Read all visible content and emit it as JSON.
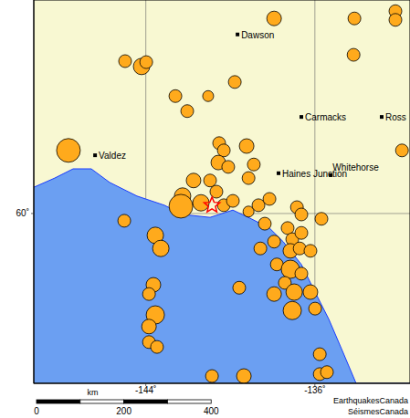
{
  "chart_data": {
    "type": "scatter",
    "xlim": [
      -149.3,
      -131.5
    ],
    "ylim": [
      56.5,
      64.4
    ],
    "xticks": [
      {
        "value": -144,
        "label": "-144˚"
      },
      {
        "value": -136,
        "label": "-136˚"
      }
    ],
    "yticks": [
      {
        "value": 60,
        "label": "60˚"
      }
    ],
    "grid": true,
    "color": "#ffaa1c",
    "coastline": {
      "x": [
        -149.3,
        -148.31,
        -147.44,
        -146.58,
        -145.71,
        -144.42,
        -143.12,
        -142.26,
        -140.96,
        -139.88,
        -139.01,
        -138.15,
        -137.5,
        -136.64,
        -135.99,
        -135.34,
        -134.69,
        -134.05,
        -131.5
      ],
      "y": [
        60.54,
        60.73,
        60.92,
        60.92,
        60.64,
        60.36,
        60.17,
        59.98,
        59.92,
        60.07,
        59.89,
        59.7,
        59.42,
        58.95,
        58.38,
        57.82,
        57.16,
        56.5,
        56.5
      ]
    },
    "quakes": [
      {
        "x": -137.93,
        "y": 64.02,
        "magnitude": 3
      },
      {
        "x": -134.13,
        "y": 64.02,
        "magnitude": 2.5
      },
      {
        "x": -132.19,
        "y": 64.17,
        "magnitude": 2.5
      },
      {
        "x": -132.19,
        "y": 63.99,
        "magnitude": 2.5
      },
      {
        "x": -134.17,
        "y": 63.27,
        "magnitude": 2.5
      },
      {
        "x": -144.98,
        "y": 63.14,
        "magnitude": 2.5
      },
      {
        "x": -144.2,
        "y": 63.03,
        "magnitude": 3.5
      },
      {
        "x": -143.98,
        "y": 63.12,
        "magnitude": 2.5
      },
      {
        "x": -142.6,
        "y": 62.42,
        "magnitude": 2.5
      },
      {
        "x": -142.04,
        "y": 62.11,
        "magnitude": 2.5
      },
      {
        "x": -141.05,
        "y": 62.42,
        "magnitude": 2
      },
      {
        "x": -139.79,
        "y": 62.71,
        "magnitude": 2.5
      },
      {
        "x": -131.88,
        "y": 61.3,
        "magnitude": 2.5
      },
      {
        "x": -147.66,
        "y": 61.3,
        "magnitude": 5.5
      },
      {
        "x": -140.53,
        "y": 61.45,
        "magnitude": 2.5
      },
      {
        "x": -140.31,
        "y": 61.3,
        "magnitude": 2.5
      },
      {
        "x": -140.57,
        "y": 61.05,
        "magnitude": 3
      },
      {
        "x": -140.1,
        "y": 60.96,
        "magnitude": 2.5
      },
      {
        "x": -139.23,
        "y": 61.39,
        "magnitude": 3
      },
      {
        "x": -138.89,
        "y": 61.01,
        "magnitude": 2.5
      },
      {
        "x": -139.14,
        "y": 60.73,
        "magnitude": 2.5
      },
      {
        "x": -141.74,
        "y": 60.68,
        "magnitude": 3
      },
      {
        "x": -140.96,
        "y": 60.68,
        "magnitude": 2.5
      },
      {
        "x": -140.66,
        "y": 60.45,
        "magnitude": 2.5
      },
      {
        "x": -142.26,
        "y": 60.36,
        "magnitude": 3.5
      },
      {
        "x": -141.39,
        "y": 60.22,
        "magnitude": 3.5
      },
      {
        "x": -142.34,
        "y": 60.15,
        "magnitude": 5.5
      },
      {
        "x": -140.31,
        "y": 60.17,
        "magnitude": 2.5
      },
      {
        "x": -139.88,
        "y": 60.26,
        "magnitude": 2.5
      },
      {
        "x": -139.14,
        "y": 60.04,
        "magnitude": 2
      },
      {
        "x": -138.67,
        "y": 60.17,
        "magnitude": 2.5
      },
      {
        "x": -138.15,
        "y": 60.3,
        "magnitude": 2.5
      },
      {
        "x": -138.37,
        "y": 59.79,
        "magnitude": 2.5
      },
      {
        "x": -136.85,
        "y": 60.13,
        "magnitude": 2.5
      },
      {
        "x": -136.64,
        "y": 59.98,
        "magnitude": 2.5
      },
      {
        "x": -135.69,
        "y": 59.89,
        "magnitude": 2.5
      },
      {
        "x": -145.02,
        "y": 59.85,
        "magnitude": 2.5
      },
      {
        "x": -143.55,
        "y": 59.55,
        "magnitude": 3.5
      },
      {
        "x": -143.29,
        "y": 59.28,
        "magnitude": 3.5
      },
      {
        "x": -137.29,
        "y": 59.7,
        "magnitude": 2.5
      },
      {
        "x": -137.07,
        "y": 59.47,
        "magnitude": 2.5
      },
      {
        "x": -136.64,
        "y": 59.6,
        "magnitude": 2.5
      },
      {
        "x": -137.93,
        "y": 59.42,
        "magnitude": 2.5
      },
      {
        "x": -137.16,
        "y": 59.23,
        "magnitude": 3
      },
      {
        "x": -136.72,
        "y": 59.28,
        "magnitude": 2.5
      },
      {
        "x": -136.21,
        "y": 59.23,
        "magnitude": 2.5
      },
      {
        "x": -138.58,
        "y": 59.28,
        "magnitude": 2.5
      },
      {
        "x": -137.8,
        "y": 58.95,
        "magnitude": 2.5
      },
      {
        "x": -137.16,
        "y": 58.85,
        "magnitude": 4
      },
      {
        "x": -136.64,
        "y": 58.76,
        "magnitude": 2.5
      },
      {
        "x": -137.42,
        "y": 58.57,
        "magnitude": 2.5
      },
      {
        "x": -137.93,
        "y": 58.34,
        "magnitude": 3
      },
      {
        "x": -136.98,
        "y": 58.38,
        "magnitude": 3.5
      },
      {
        "x": -136.21,
        "y": 58.38,
        "magnitude": 3
      },
      {
        "x": -135.99,
        "y": 58.04,
        "magnitude": 2.5
      },
      {
        "x": -137.07,
        "y": 58.0,
        "magnitude": 4
      },
      {
        "x": -139.58,
        "y": 58.47,
        "magnitude": 2.5
      },
      {
        "x": -143.64,
        "y": 58.53,
        "magnitude": 3
      },
      {
        "x": -143.85,
        "y": 58.34,
        "magnitude": 2.5
      },
      {
        "x": -143.55,
        "y": 57.91,
        "magnitude": 4
      },
      {
        "x": -143.85,
        "y": 57.67,
        "magnitude": 3
      },
      {
        "x": -143.85,
        "y": 57.35,
        "magnitude": 2.5
      },
      {
        "x": -143.47,
        "y": 57.25,
        "magnitude": 2.5
      },
      {
        "x": -140.87,
        "y": 56.65,
        "magnitude": 2.5
      },
      {
        "x": -139.36,
        "y": 56.65,
        "magnitude": 3
      },
      {
        "x": -135.77,
        "y": 57.1,
        "magnitude": 2.5
      },
      {
        "x": -135.77,
        "y": 56.69,
        "magnitude": 2.5
      },
      {
        "x": -135.43,
        "y": 56.73,
        "magnitude": 2.5
      }
    ],
    "event": {
      "x": -140.87,
      "y": 60.17,
      "color": "#ff0000"
    },
    "cities": [
      {
        "name": "Dawson",
        "x": -139.66,
        "y": 63.69
      },
      {
        "name": "Carmacks",
        "x": -136.64,
        "y": 61.99
      },
      {
        "name": "Ross",
        "x": -132.84,
        "y": 61.99
      },
      {
        "name": "Valdez",
        "x": -146.4,
        "y": 61.2
      },
      {
        "name": "Haines Junction",
        "x": -137.72,
        "y": 60.83
      },
      {
        "name": "Whitehorse",
        "x": -135.25,
        "y": 60.79
      }
    ],
    "scale_bar": {
      "unit": "km",
      "ticks": [
        0,
        200,
        400
      ]
    },
    "credits": [
      "EarthquakesCanada",
      "SéismesCanada"
    ]
  }
}
